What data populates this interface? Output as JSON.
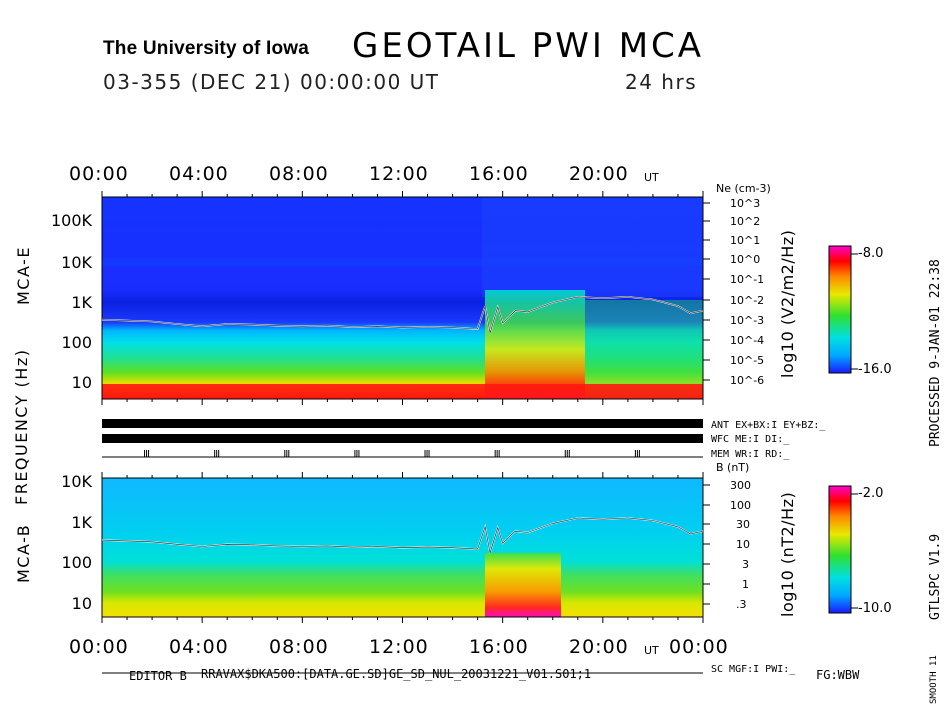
{
  "header": {
    "institution": "The University of Iowa",
    "title": "GEOTAIL PWI MCA",
    "date_line": "03-355 (DEC 21) 00:00:00 UT",
    "duration": "24 hrs"
  },
  "time_axis": {
    "ticks": [
      "00:00",
      "04:00",
      "08:00",
      "12:00",
      "16:00",
      "20:00",
      "00:00"
    ],
    "unit": "UT"
  },
  "labels": {
    "frequency_axis": "FREQUENCY (Hz)",
    "mca_e": "MCA-E",
    "mca_b": "MCA-B",
    "ne_title": "Ne (cm-3)",
    "b_title": "B (nT)",
    "cb_e_title": "log10 (V2/m2/Hz)",
    "cb_b_title": "log10 (nT2/Hz)",
    "processed": "PROCESSED  9-JAN-01  22:38",
    "version": "GTLSPC  V1.9",
    "smooth": "SMOOTH 11"
  },
  "status_rows": {
    "ant": "ANT EX+BX:I EY+BZ:_",
    "wfc": "WFC ME:I     DI:_",
    "mem": "MEM WR:I     RD:_",
    "sc": "SC MGF:I    PWI:_"
  },
  "footer": {
    "editor": "EDITOR B",
    "path": "RRAVAX$DKA500:[DATA.GE.SD]GE_SD_NUL_20031221_V01.S01;1",
    "fg": "FG:WBW"
  },
  "chart_data": [
    {
      "type": "heatmap",
      "name": "MCA-E",
      "x_range_hours": [
        0,
        24
      ],
      "y_scale": "log",
      "ylim_hz": [
        5,
        400000
      ],
      "y_tick_labels": [
        "100K",
        "10K",
        "1K",
        "100",
        "10"
      ],
      "y_tick_values": [
        100000,
        10000,
        1000,
        100,
        10
      ],
      "right_axis_ticks": [
        "10^3",
        "10^2",
        "10^1",
        "10^0",
        "10^-1",
        "10^-2",
        "10^-3",
        "10^-4",
        "10^-5",
        "10^-6"
      ],
      "colorbar_range": [
        -16.0,
        -8.0
      ],
      "colorbar_labels": [
        "-8.0",
        "-16.0"
      ],
      "overlay_line_hz": {
        "hours": [
          0,
          1,
          2,
          3,
          4,
          5,
          6,
          7,
          8,
          9,
          10,
          11,
          12,
          13,
          14,
          15,
          15.3,
          15.5,
          15.8,
          16,
          16.5,
          17,
          18,
          19,
          20,
          21,
          22,
          23,
          23.5,
          24
        ],
        "values": [
          420,
          400,
          380,
          330,
          290,
          330,
          320,
          300,
          290,
          300,
          280,
          290,
          270,
          280,
          270,
          250,
          900,
          200,
          850,
          350,
          700,
          650,
          1100,
          1500,
          1400,
          1500,
          1300,
          900,
          600,
          700
        ]
      }
    },
    {
      "type": "heatmap",
      "name": "MCA-B",
      "x_range_hours": [
        0,
        24
      ],
      "y_scale": "log",
      "ylim_hz": [
        5,
        15000
      ],
      "y_tick_labels": [
        "10K",
        "1K",
        "100",
        "10"
      ],
      "y_tick_values": [
        10000,
        1000,
        100,
        10
      ],
      "right_axis_ticks": [
        "300",
        "100",
        "30",
        "10",
        "3",
        "1",
        ".3"
      ],
      "colorbar_range": [
        -10.0,
        -2.0
      ],
      "colorbar_labels": [
        "-2.0",
        "-10.0"
      ],
      "overlay_line_hz": {
        "hours": [
          0,
          1,
          2,
          3,
          4,
          5,
          6,
          7,
          8,
          9,
          10,
          11,
          12,
          13,
          14,
          15,
          15.3,
          15.5,
          15.8,
          16,
          16.5,
          17,
          18,
          19,
          20,
          21,
          22,
          23,
          23.5,
          24
        ],
        "values": [
          420,
          400,
          380,
          330,
          290,
          330,
          320,
          300,
          290,
          300,
          280,
          290,
          270,
          280,
          270,
          250,
          900,
          200,
          850,
          350,
          700,
          650,
          1100,
          1500,
          1400,
          1500,
          1300,
          900,
          600,
          700
        ]
      }
    }
  ],
  "colors": {
    "background": "#ffffff",
    "bars": "#000000",
    "colormap": [
      "#1a1aff",
      "#00aaff",
      "#00e0e0",
      "#30e030",
      "#e8e800",
      "#ff8800",
      "#ff0000",
      "#ff00cc"
    ]
  }
}
